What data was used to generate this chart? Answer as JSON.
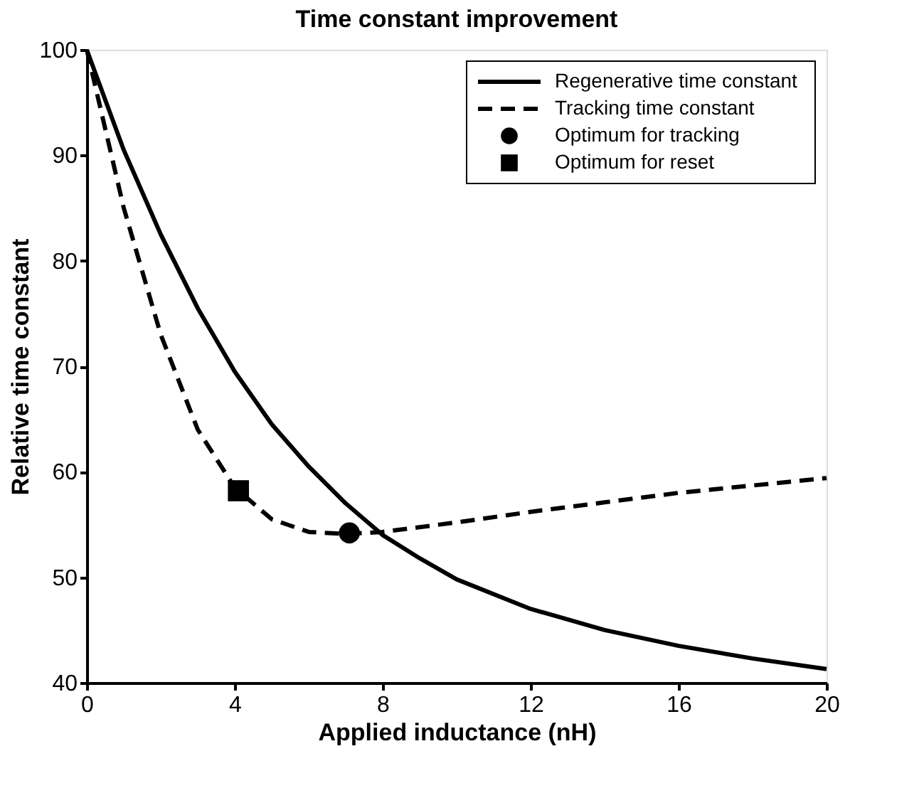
{
  "chart_data": {
    "type": "line",
    "title": "Time constant improvement",
    "xlabel": "Applied inductance (nH)",
    "ylabel": "Relative time constant",
    "xlim": [
      0,
      20
    ],
    "xticks": [
      0,
      4,
      8,
      12,
      16,
      20
    ],
    "ylim": [
      40,
      100
    ],
    "yticks": [
      40,
      50,
      60,
      70,
      80,
      90,
      100
    ],
    "grid": false,
    "legend": "top right",
    "series": [
      {
        "name": "Regenerative time constant",
        "line_style": "solid",
        "color": "#000000",
        "x": [
          0,
          1,
          2,
          3,
          4,
          5,
          6,
          7,
          8,
          9,
          10,
          12,
          14,
          16,
          18,
          20
        ],
        "values": [
          100,
          90.5,
          82.5,
          75.5,
          69.5,
          64.5,
          60.5,
          57,
          54,
          51.8,
          49.8,
          47,
          45,
          43.5,
          42.3,
          41.3
        ]
      },
      {
        "name": "Tracking time constant",
        "line_style": "dashed",
        "color": "#000000",
        "x": [
          0,
          1,
          2,
          3,
          4,
          5,
          6,
          7,
          8,
          10,
          12,
          14,
          16,
          18,
          20
        ],
        "values": [
          100,
          85,
          73,
          64,
          58.5,
          55.5,
          54.3,
          54.1,
          54.3,
          55.2,
          56.2,
          57.1,
          58,
          58.7,
          59.4
        ]
      },
      {
        "name": "Optimum for tracking",
        "type": "scatter",
        "marker": "circle",
        "color": "#000000",
        "x": [
          7.1
        ],
        "values": [
          54.2
        ]
      },
      {
        "name": "Optimum for reset",
        "type": "scatter",
        "marker": "square",
        "color": "#000000",
        "x": [
          4.1
        ],
        "values": [
          58.2
        ]
      }
    ]
  }
}
